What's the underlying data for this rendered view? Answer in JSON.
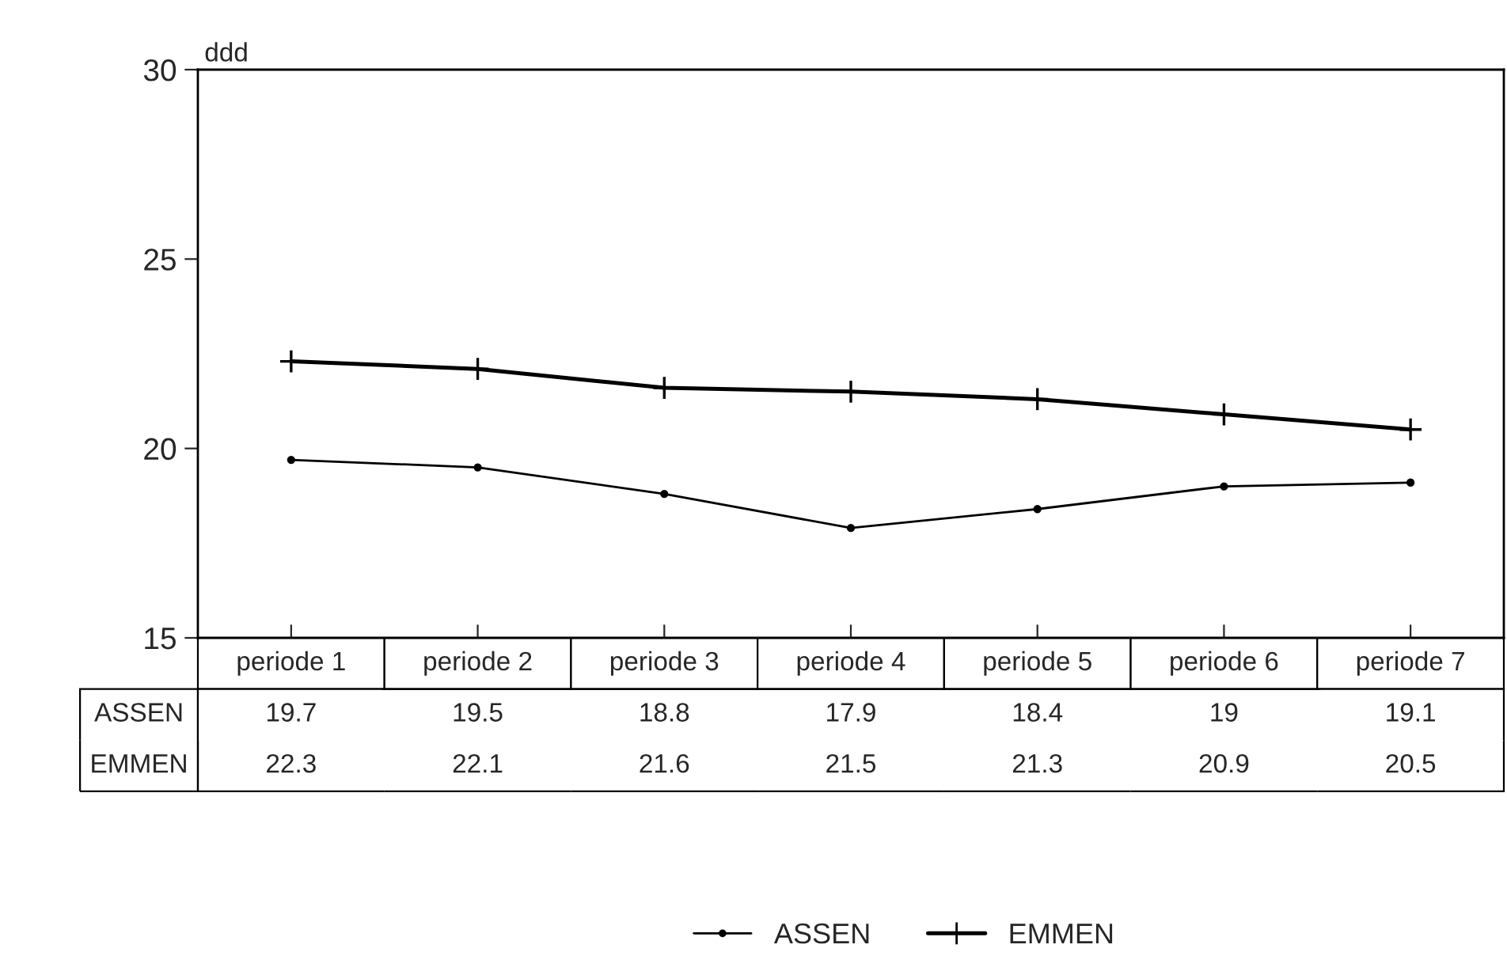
{
  "chart_data": {
    "type": "line",
    "ylabel": "ddd",
    "categories": [
      "periode 1",
      "periode 2",
      "periode 3",
      "periode 4",
      "periode 5",
      "periode 6",
      "periode 7"
    ],
    "series": [
      {
        "name": "ASSEN",
        "color": "#000000",
        "marker": "circle",
        "values": [
          19.7,
          19.5,
          18.8,
          17.9,
          18.4,
          19,
          19.1
        ]
      },
      {
        "name": "EMMEN",
        "color": "#000000",
        "marker": "cross",
        "values": [
          22.3,
          22.1,
          21.6,
          21.5,
          21.3,
          20.9,
          20.5
        ]
      }
    ],
    "ylim": [
      15,
      30
    ],
    "yticks": [
      15,
      20,
      25,
      30
    ],
    "grid": false,
    "legend": "bottom",
    "data_labels": true
  }
}
